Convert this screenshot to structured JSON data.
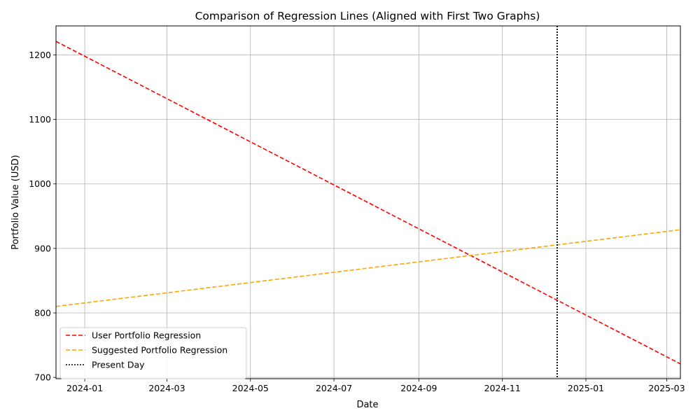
{
  "chart_data": {
    "type": "line",
    "title": "Comparison of Regression Lines (Aligned with First Two Graphs)",
    "xlabel": "Date",
    "ylabel": "Portfolio Value (USD)",
    "x_range": [
      "2023-12-11",
      "2025-03-11"
    ],
    "ylim": [
      698,
      1245
    ],
    "x_ticks": [
      {
        "date": "2024-01-01",
        "label": "2024-01"
      },
      {
        "date": "2024-03-01",
        "label": "2024-03"
      },
      {
        "date": "2024-05-01",
        "label": "2024-05"
      },
      {
        "date": "2024-07-01",
        "label": "2024-07"
      },
      {
        "date": "2024-09-01",
        "label": "2024-09"
      },
      {
        "date": "2024-11-01",
        "label": "2024-11"
      },
      {
        "date": "2025-01-01",
        "label": "2025-01"
      },
      {
        "date": "2025-03-01",
        "label": "2025-03"
      }
    ],
    "y_ticks": [
      700,
      800,
      900,
      1000,
      1100,
      1200
    ],
    "grid": true,
    "legend_position": "lower-left",
    "series": [
      {
        "name": "User Portfolio Regression",
        "color": "#ff0000",
        "style": "dashed",
        "x": [
          "2023-12-11",
          "2025-03-11"
        ],
        "y": [
          1221,
          721
        ]
      },
      {
        "name": "Suggested Portfolio Regression",
        "color": "#ffa500",
        "style": "dashed",
        "x": [
          "2023-12-11",
          "2025-03-11"
        ],
        "y": [
          810,
          929
        ]
      }
    ],
    "vlines": [
      {
        "name": "Present Day",
        "color": "#000000",
        "style": "dotted",
        "x": "2024-12-11"
      }
    ]
  }
}
